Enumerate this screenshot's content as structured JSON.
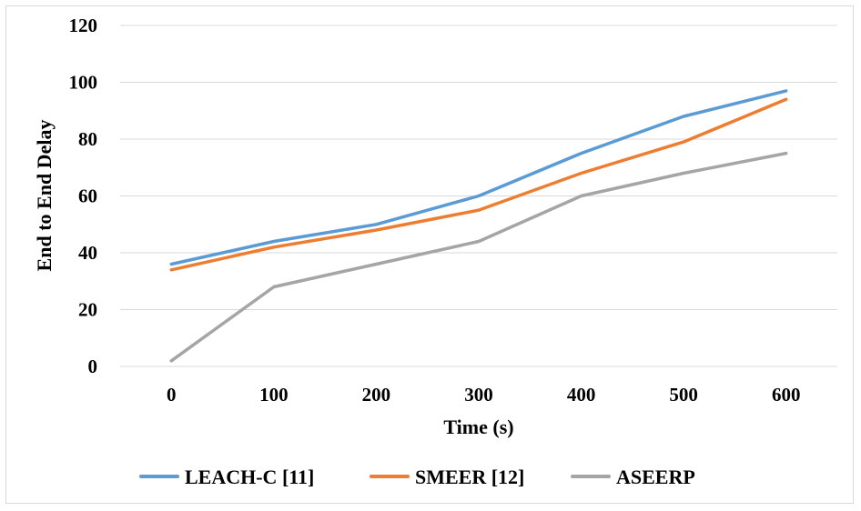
{
  "chart_data": {
    "type": "line",
    "title": "",
    "xlabel": "Time (s)",
    "ylabel": "End to End Delay",
    "categories": [
      "0",
      "100",
      "200",
      "300",
      "400",
      "500",
      "600"
    ],
    "ylim": [
      0,
      120
    ],
    "yticks": [
      0,
      20,
      40,
      60,
      80,
      100,
      120
    ],
    "ytick_labels": [
      "0",
      "20",
      "40",
      "60",
      "80",
      "100",
      "120"
    ],
    "grid": "horizontal",
    "legend_position": "bottom",
    "series": [
      {
        "name": "LEACH-C [11]",
        "color": "#5b9bd5",
        "values": [
          36,
          44,
          50,
          60,
          75,
          88,
          97
        ]
      },
      {
        "name": "SMEER [12]",
        "color": "#ed7d31",
        "values": [
          34,
          42,
          48,
          55,
          68,
          79,
          94
        ]
      },
      {
        "name": "ASEERP",
        "color": "#a5a5a5",
        "values": [
          2,
          28,
          36,
          44,
          60,
          68,
          75
        ]
      }
    ]
  }
}
